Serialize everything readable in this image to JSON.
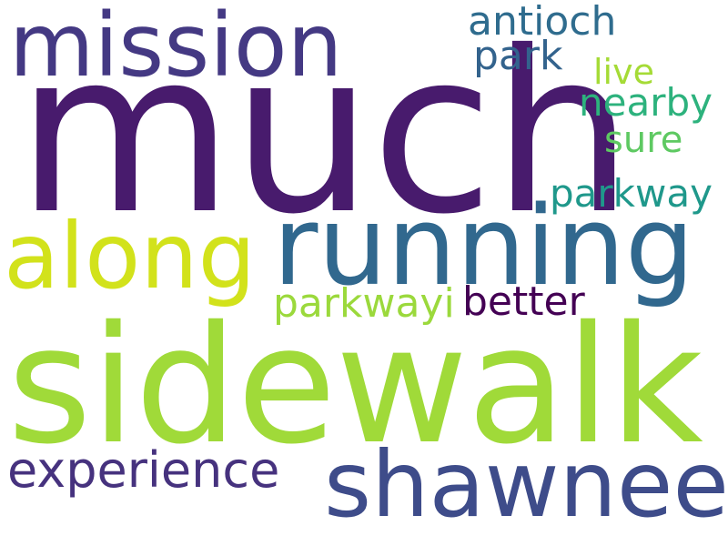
{
  "words": {
    "much": {
      "text": "much",
      "color": "#481b6d"
    },
    "mission": {
      "text": "mission",
      "color": "#443983"
    },
    "sidewalk": {
      "text": "sidewalk",
      "color": "#a0da39"
    },
    "running": {
      "text": "running",
      "color": "#31688e"
    },
    "along": {
      "text": "along",
      "color": "#d2e21b"
    },
    "shawnee": {
      "text": "shawnee",
      "color": "#3e4c8a"
    },
    "experience": {
      "text": "experience",
      "color": "#46327e"
    },
    "antioch": {
      "text": "antioch",
      "color": "#2f6c8e"
    },
    "park": {
      "text": "park",
      "color": "#33638d"
    },
    "live": {
      "text": "live",
      "color": "#a5db36"
    },
    "nearby": {
      "text": "nearby",
      "color": "#2db27d"
    },
    "sure": {
      "text": "sure",
      "color": "#5ec962"
    },
    "parkway": {
      "text": "parkway",
      "color": "#1f988b"
    },
    "parkwayi": {
      "text": "parkwayi",
      "color": "#9bd93c"
    },
    "better": {
      "text": "better",
      "color": "#440154"
    }
  }
}
